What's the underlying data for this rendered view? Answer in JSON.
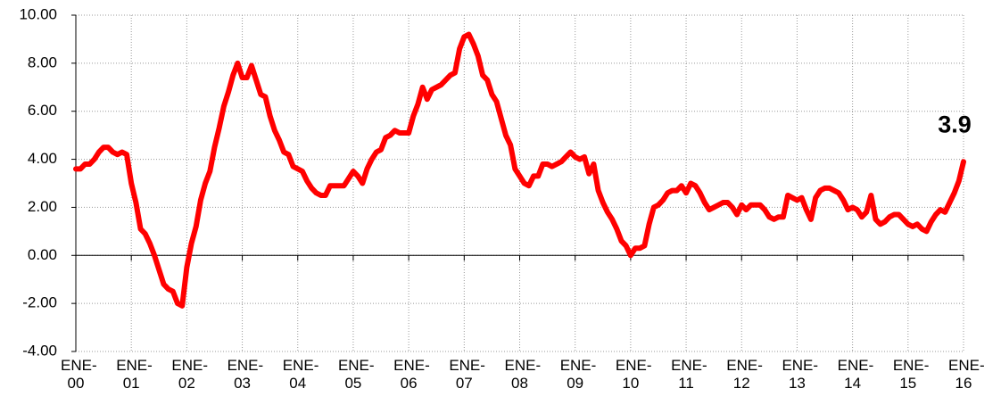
{
  "chart_data": {
    "type": "line",
    "annotation": "3.9",
    "categories": [
      "ENE-00",
      null,
      null,
      null,
      null,
      null,
      null,
      null,
      null,
      null,
      null,
      null,
      "ENE-01",
      null,
      null,
      null,
      null,
      null,
      null,
      null,
      null,
      null,
      null,
      null,
      "ENE-02",
      null,
      null,
      null,
      null,
      null,
      null,
      null,
      null,
      null,
      null,
      null,
      "ENE-03",
      null,
      null,
      null,
      null,
      null,
      null,
      null,
      null,
      null,
      null,
      null,
      "ENE-04",
      null,
      null,
      null,
      null,
      null,
      null,
      null,
      null,
      null,
      null,
      null,
      "ENE-05",
      null,
      null,
      null,
      null,
      null,
      null,
      null,
      null,
      null,
      null,
      null,
      "ENE-06",
      null,
      null,
      null,
      null,
      null,
      null,
      null,
      null,
      null,
      null,
      null,
      "ENE-07",
      null,
      null,
      null,
      null,
      null,
      null,
      null,
      null,
      null,
      null,
      null,
      "ENE-08",
      null,
      null,
      null,
      null,
      null,
      null,
      null,
      null,
      null,
      null,
      null,
      "ENE-09",
      null,
      null,
      null,
      null,
      null,
      null,
      null,
      null,
      null,
      null,
      null,
      "ENE-10",
      null,
      null,
      null,
      null,
      null,
      null,
      null,
      null,
      null,
      null,
      null,
      "ENE-11",
      null,
      null,
      null,
      null,
      null,
      null,
      null,
      null,
      null,
      null,
      null,
      "ENE-12",
      null,
      null,
      null,
      null,
      null,
      null,
      null,
      null,
      null,
      null,
      null,
      "ENE-13",
      null,
      null,
      null,
      null,
      null,
      null,
      null,
      null,
      null,
      null,
      null,
      "ENE-14",
      null,
      null,
      null,
      null,
      null,
      null,
      null,
      null,
      null,
      null,
      null,
      "ENE-15",
      null,
      null,
      null,
      null,
      null,
      null,
      null,
      null,
      null,
      null,
      null,
      "ENE-16"
    ],
    "values": [
      3.6,
      3.6,
      3.8,
      3.8,
      4.0,
      4.3,
      4.5,
      4.5,
      4.3,
      4.2,
      4.3,
      4.2,
      3.0,
      2.2,
      1.1,
      0.9,
      0.5,
      0.0,
      -0.6,
      -1.2,
      -1.4,
      -1.5,
      -2.0,
      -2.1,
      -0.5,
      0.5,
      1.2,
      2.3,
      3.0,
      3.5,
      4.5,
      5.3,
      6.2,
      6.8,
      7.5,
      8.0,
      7.4,
      7.4,
      7.9,
      7.3,
      6.7,
      6.6,
      5.8,
      5.2,
      4.8,
      4.3,
      4.2,
      3.7,
      3.6,
      3.5,
      3.1,
      2.8,
      2.6,
      2.5,
      2.5,
      2.9,
      2.9,
      2.9,
      2.9,
      3.2,
      3.5,
      3.3,
      3.0,
      3.6,
      4.0,
      4.3,
      4.4,
      4.9,
      5.0,
      5.2,
      5.1,
      5.1,
      5.1,
      5.8,
      6.3,
      7.0,
      6.5,
      6.9,
      7.0,
      7.1,
      7.3,
      7.5,
      7.6,
      8.6,
      9.1,
      9.2,
      8.8,
      8.3,
      7.5,
      7.3,
      6.7,
      6.4,
      5.7,
      5.0,
      4.6,
      3.6,
      3.3,
      3.0,
      2.9,
      3.3,
      3.3,
      3.8,
      3.8,
      3.7,
      3.8,
      3.9,
      4.1,
      4.3,
      4.1,
      4.0,
      4.1,
      3.4,
      3.8,
      2.7,
      2.2,
      1.8,
      1.5,
      1.1,
      0.6,
      0.4,
      0.0,
      0.3,
      0.3,
      0.4,
      1.3,
      2.0,
      2.1,
      2.3,
      2.6,
      2.7,
      2.7,
      2.9,
      2.6,
      3.0,
      2.9,
      2.6,
      2.2,
      1.9,
      2.0,
      2.1,
      2.2,
      2.2,
      2.0,
      1.7,
      2.1,
      1.9,
      2.1,
      2.1,
      2.1,
      1.9,
      1.6,
      1.5,
      1.6,
      1.6,
      2.5,
      2.4,
      2.3,
      2.4,
      1.9,
      1.5,
      2.4,
      2.7,
      2.8,
      2.8,
      2.7,
      2.6,
      2.3,
      1.9,
      2.0,
      1.9,
      1.6,
      1.8,
      2.5,
      1.5,
      1.3,
      1.4,
      1.6,
      1.7,
      1.7,
      1.5,
      1.3,
      1.2,
      1.3,
      1.1,
      1.0,
      1.4,
      1.7,
      1.9,
      1.8,
      2.2,
      2.6,
      3.1,
      3.9
    ],
    "color": "#ff0000",
    "ylim": [
      -4,
      10
    ],
    "yticks": [
      {
        "value": -4,
        "label": "-4.00"
      },
      {
        "value": -2,
        "label": "-2.00"
      },
      {
        "value": 0,
        "label": "0.00"
      },
      {
        "value": 2,
        "label": "2.00"
      },
      {
        "value": 4,
        "label": "4.00"
      },
      {
        "value": 6,
        "label": "6.00"
      },
      {
        "value": 8,
        "label": "8.00"
      },
      {
        "value": 10,
        "label": "10.00"
      }
    ],
    "grid": true
  }
}
